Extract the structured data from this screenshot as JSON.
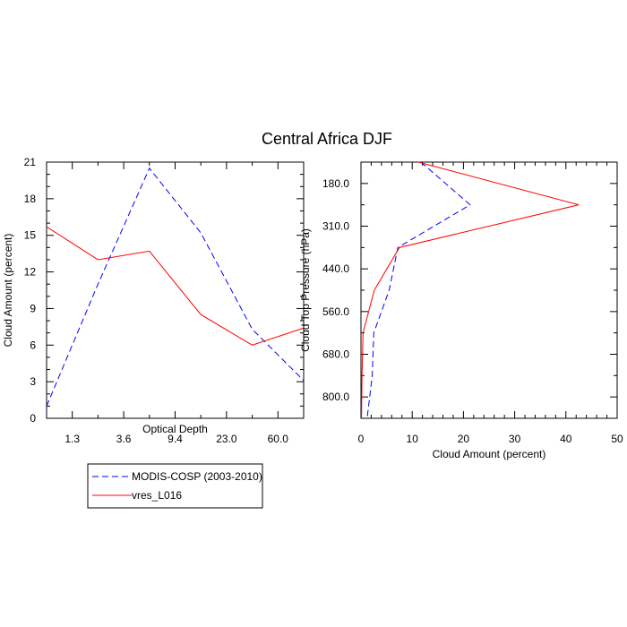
{
  "title": "Central Africa DJF",
  "colors": {
    "modis": "#0000ff",
    "model": "#ff0000",
    "axis": "#000000"
  },
  "chart_data": [
    {
      "type": "line",
      "xlabel": "Optical Depth",
      "ylabel": "Cloud Amount (percent)",
      "x_tick_labels": [
        "1.3",
        "3.6",
        "9.4",
        "23.0",
        "60.0"
      ],
      "y_ticks": [
        "0",
        "3",
        "6",
        "9",
        "12",
        "15",
        "18",
        "21"
      ],
      "ylim": [
        0,
        21
      ],
      "x_index": [
        0,
        1,
        2,
        3,
        4,
        5
      ],
      "series": [
        {
          "name": "MODIS-COSP (2003-2010)",
          "style": "dashed",
          "values": [
            1.0,
            11.0,
            20.5,
            15.2,
            7.3,
            3.1
          ]
        },
        {
          "name": "vres_L016",
          "style": "solid",
          "values": [
            15.7,
            13.0,
            13.7,
            8.5,
            6.0,
            7.4
          ]
        }
      ]
    },
    {
      "type": "line",
      "xlabel": "Cloud Amount (percent)",
      "ylabel": "Cloud Top Pressure (hPa)",
      "x_ticks": [
        "0",
        "10",
        "20",
        "30",
        "40",
        "50"
      ],
      "xlim": [
        0,
        50
      ],
      "y_tick_labels": [
        "180.0",
        "310.0",
        "440.0",
        "560.0",
        "680.0",
        "800.0"
      ],
      "y_index": [
        0,
        1,
        2,
        3,
        4,
        5,
        6
      ],
      "y_direction": "pressure-increasing-downward",
      "series": [
        {
          "name": "MODIS-COSP (2003-2010)",
          "style": "dashed",
          "values": [
            11.7,
            21.3,
            7.2,
            5.5,
            2.5,
            2.2,
            1.2
          ]
        },
        {
          "name": "vres_L016",
          "style": "solid",
          "values": [
            11.2,
            42.5,
            7.5,
            2.6,
            0.4,
            0.2,
            0.1
          ]
        }
      ]
    }
  ],
  "legend": [
    {
      "label": "MODIS-COSP (2003-2010)",
      "style": "dashed"
    },
    {
      "label": "vres_L016",
      "style": "solid"
    }
  ]
}
